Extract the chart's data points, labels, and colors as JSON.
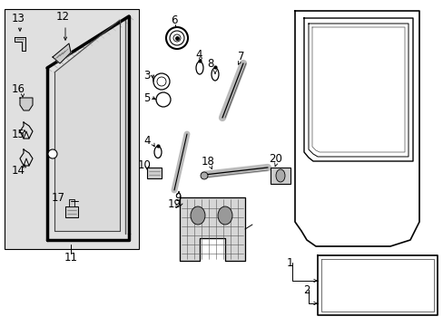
{
  "bg_color": "#ffffff",
  "line_color": "#000000",
  "gray_bg": "#e0e0e0",
  "gray_part": "#cccccc",
  "dark_gray": "#888888"
}
